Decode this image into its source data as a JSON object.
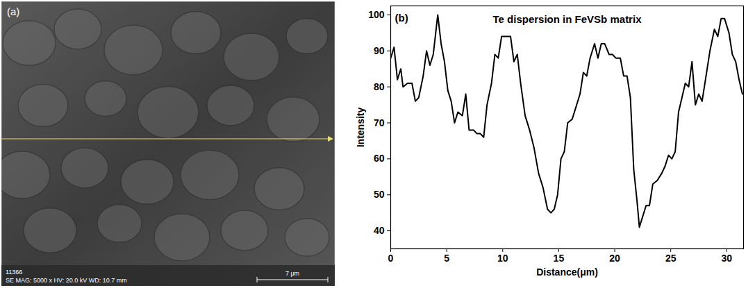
{
  "chart_data": {
    "type": "line",
    "panel_label": "(b)",
    "title": "Te dispersion in FeVSb matrix",
    "x_label": "Distance(μm)",
    "y_label": "Intensity",
    "x": [
      0,
      0.3,
      0.6,
      0.9,
      1.1,
      1.5,
      1.9,
      2.2,
      2.5,
      2.9,
      3.2,
      3.5,
      3.8,
      4.2,
      4.5,
      4.8,
      5.1,
      5.4,
      5.7,
      6.0,
      6.4,
      6.7,
      7.0,
      7.4,
      7.7,
      8.0,
      8.3,
      8.6,
      9.0,
      9.3,
      9.6,
      9.9,
      10.3,
      10.7,
      11.0,
      11.3,
      11.6,
      12.0,
      12.4,
      12.8,
      13.2,
      13.6,
      14.0,
      14.3,
      14.6,
      14.9,
      15.2,
      15.5,
      15.8,
      16.2,
      16.5,
      16.9,
      17.2,
      17.5,
      17.8,
      18.2,
      18.5,
      18.8,
      19.1,
      19.5,
      19.8,
      20.1,
      20.5,
      20.8,
      21.1,
      21.4,
      21.7,
      22.0,
      22.2,
      22.5,
      22.8,
      23.1,
      23.4,
      23.8,
      24.2,
      24.5,
      24.8,
      25.1,
      25.4,
      25.7,
      26.0,
      26.3,
      26.6,
      26.9,
      27.2,
      27.5,
      27.8,
      28.1,
      28.5,
      28.9,
      29.2,
      29.5,
      29.8,
      30.2,
      30.5,
      30.8,
      31.1,
      31.4
    ],
    "series": [
      {
        "name": "Te",
        "color": "#000000",
        "values": [
          88,
          91,
          82,
          85,
          80,
          81,
          81,
          76,
          77,
          83,
          90,
          86,
          89,
          100,
          92,
          87,
          79,
          76,
          70,
          73,
          72,
          78,
          68,
          68,
          67,
          67,
          66,
          75,
          81,
          89,
          88,
          94,
          94,
          94,
          87,
          89,
          81,
          72,
          68,
          63,
          56,
          52,
          46,
          45,
          46,
          50,
          60,
          62,
          70,
          71,
          74,
          78,
          84,
          83,
          88,
          92,
          88,
          92,
          92,
          89,
          89,
          88,
          88,
          83,
          83,
          77,
          57,
          48,
          41,
          44,
          47,
          47,
          53,
          54,
          56,
          58,
          61,
          60,
          62,
          73,
          77,
          81,
          80,
          87,
          75,
          78,
          76,
          82,
          90,
          96,
          94,
          99,
          99,
          95,
          89,
          87,
          82,
          78
        ]
      }
    ],
    "xlim": [
      0,
      31.5
    ],
    "xticks": [
      0,
      5,
      10,
      15,
      20,
      25,
      30
    ],
    "ylim": [
      35,
      102.5
    ],
    "yticks": [
      40,
      50,
      60,
      70,
      80,
      90,
      100
    ],
    "grid": false
  },
  "image_panel": {
    "label": "(a)",
    "image_id": "11366",
    "info": "SE MAG: 5000 x HV: 20.0 kV WD: 10.7 mm",
    "scale_bar": "7 μm"
  }
}
